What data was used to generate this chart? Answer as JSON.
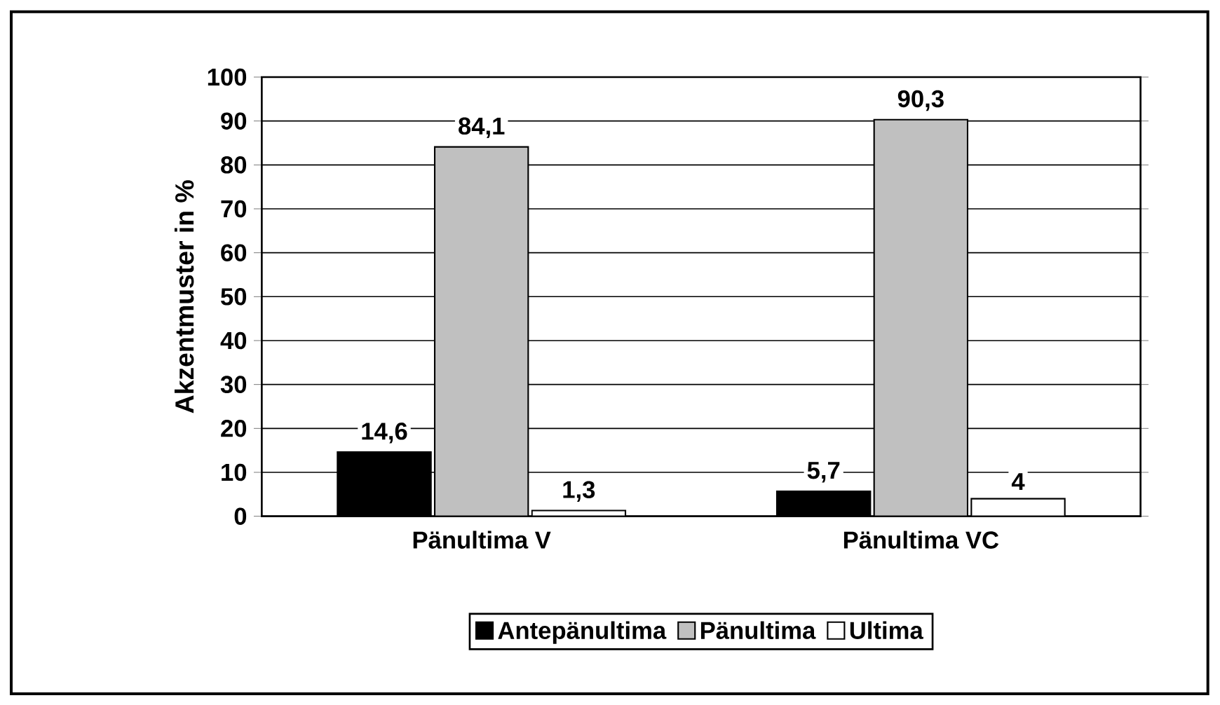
{
  "chart_data": {
    "type": "bar",
    "ylabel": "Akzentmuster in %",
    "categories": [
      "Pänultima V",
      "Pänultima VC"
    ],
    "series": [
      {
        "name": "Antepänultima",
        "color": "#000000",
        "values": [
          14.6,
          5.7
        ],
        "value_labels": [
          "14,6",
          "5,7"
        ]
      },
      {
        "name": "Pänultima",
        "color": "#c0c0c0",
        "values": [
          84.1,
          90.3
        ],
        "value_labels": [
          "84,1",
          "90,3"
        ]
      },
      {
        "name": "Ultima",
        "color": "#ffffff",
        "values": [
          1.3,
          4
        ],
        "value_labels": [
          "1,3",
          "4"
        ]
      }
    ],
    "ylim": [
      0,
      100
    ],
    "yticks": [
      0,
      10,
      20,
      30,
      40,
      50,
      60,
      70,
      80,
      90,
      100
    ],
    "grid": "y",
    "legend": "bottom"
  }
}
